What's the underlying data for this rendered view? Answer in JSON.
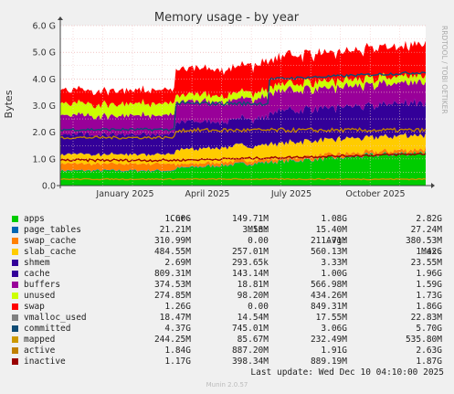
{
  "chart_data": {
    "type": "area",
    "title": "Memory usage - by year",
    "ylabel": "Bytes",
    "ylim": [
      0,
      6.0
    ],
    "y_unit": "G",
    "yticks": [
      "0.0",
      "1.0 G",
      "2.0 G",
      "3.0 G",
      "4.0 G",
      "5.0 G",
      "6.0 G"
    ],
    "xticks": [
      "January 2025",
      "April 2025",
      "July 2025",
      "October 2025"
    ],
    "side_label": "RRDTOOL / TOBI OETIKER",
    "x_months_span": [
      "2024-12",
      "2025-12"
    ],
    "stacked_series": [
      {
        "name": "apps",
        "color": "#00cc00",
        "approx_g": 0.6
      },
      {
        "name": "page_tables",
        "color": "#0066b3",
        "approx_g": 0.02
      },
      {
        "name": "swap_cache",
        "color": "#ff8000",
        "approx_g": 0.2
      },
      {
        "name": "slab_cache",
        "color": "#ffcc00",
        "approx_g": 0.55
      },
      {
        "name": "shmem",
        "color": "#330099",
        "approx_g": 0.003
      },
      {
        "name": "cache",
        "color": "#330099",
        "approx_g": 0.95
      },
      {
        "name": "buffers",
        "color": "#990099",
        "approx_g": 0.55
      },
      {
        "name": "unused",
        "color": "#ccff00",
        "approx_g": 0.4
      },
      {
        "name": "swap",
        "color": "#ff0000",
        "approx_g": 0.75
      }
    ],
    "line_series": [
      {
        "name": "committed",
        "color": "#0f4c75",
        "approx_g": 3.06
      },
      {
        "name": "mapped",
        "color": "#cc9900",
        "approx_g": 0.23
      },
      {
        "name": "active",
        "color": "#c08000",
        "approx_g": 1.91
      },
      {
        "name": "inactive",
        "color": "#990000",
        "approx_g": 0.89
      }
    ]
  },
  "legend": {
    "headers": {
      "cur": "Cur:",
      "min": "Min:",
      "avg": "Avg:",
      "max": "Max:"
    },
    "rows": [
      {
        "name": "apps",
        "color": "#00cc00",
        "cur": "1.60G",
        "min": "149.71M",
        "avg": "1.08G",
        "max": "2.82G"
      },
      {
        "name": "page_tables",
        "color": "#0066b3",
        "cur": "21.21M",
        "min": "3.58M",
        "avg": "15.40M",
        "max": "27.24M"
      },
      {
        "name": "swap_cache",
        "color": "#ff8000",
        "cur": "310.99M",
        "min": "0.00",
        "avg": "211.71M",
        "max": "380.53M"
      },
      {
        "name": "slab_cache",
        "color": "#ffcc00",
        "cur": "484.55M",
        "min": "257.01M",
        "avg": "560.13M",
        "max": "1.42G"
      },
      {
        "name": "shmem",
        "color": "#330099",
        "cur": "2.69M",
        "min": "293.65k",
        "avg": "3.33M",
        "max": "23.55M"
      },
      {
        "name": "cache",
        "color": "#330099",
        "cur": "809.31M",
        "min": "143.14M",
        "avg": "1.00G",
        "max": "1.96G"
      },
      {
        "name": "buffers",
        "color": "#990099",
        "cur": "374.53M",
        "min": "18.81M",
        "avg": "566.98M",
        "max": "1.59G"
      },
      {
        "name": "unused",
        "color": "#ccff00",
        "cur": "274.85M",
        "min": "98.20M",
        "avg": "434.26M",
        "max": "1.73G"
      },
      {
        "name": "swap",
        "color": "#ff0000",
        "cur": "1.26G",
        "min": "0.00",
        "avg": "849.31M",
        "max": "1.86G"
      },
      {
        "name": "vmalloc_used",
        "color": "#808080",
        "cur": "18.47M",
        "min": "14.54M",
        "avg": "17.55M",
        "max": "22.83M"
      },
      {
        "name": "committed",
        "color": "#0f4c75",
        "cur": "4.37G",
        "min": "745.01M",
        "avg": "3.06G",
        "max": "5.70G"
      },
      {
        "name": "mapped",
        "color": "#cc9900",
        "cur": "244.25M",
        "min": "85.67M",
        "avg": "232.49M",
        "max": "535.80M"
      },
      {
        "name": "active",
        "color": "#c08000",
        "cur": "1.84G",
        "min": "887.20M",
        "avg": "1.91G",
        "max": "2.63G"
      },
      {
        "name": "inactive",
        "color": "#990000",
        "cur": "1.17G",
        "min": "398.34M",
        "avg": "889.19M",
        "max": "1.87G"
      }
    ]
  },
  "footer": {
    "last_update": "Last update: Wed Dec 10 04:10:00 2025",
    "munin": "Munin 2.0.57"
  }
}
